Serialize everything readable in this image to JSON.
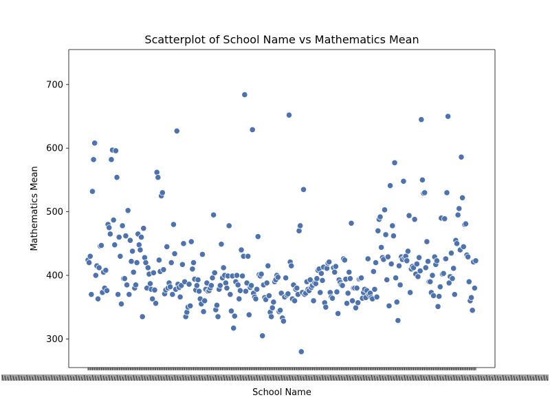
{
  "chart_data": {
    "type": "scatter",
    "title": "Scatterplot of School Name vs Mathematics Mean",
    "xlabel": "School Name",
    "ylabel": "Mathematics Mean",
    "ylim": [
      255,
      755
    ],
    "yticks": [
      300,
      400,
      500,
      600,
      700
    ],
    "grid": false,
    "point_color": "#4c72b0",
    "point_edge_color": "#ffffff",
    "x_tick_labels_note": "",
    "series": [
      {
        "values": [
          424,
          420,
          430,
          370,
          532,
          582,
          608,
          400,
          415,
          363,
          412,
          446,
          447,
          373,
          405,
          380,
          408,
          376,
          480,
          475,
          465,
          582,
          597,
          487,
          448,
          596,
          554,
          370,
          460,
          430,
          355,
          478,
          395,
          395,
          462,
          385,
          502,
          370,
          455,
          422,
          438,
          405,
          380,
          385,
          420,
          465,
          448,
          440,
          460,
          335,
          474,
          428,
          420,
          380,
          412,
          402,
          387,
          378,
          363,
          404,
          377,
          356,
          562,
          554,
          424,
          406,
          525,
          530,
          409,
          371,
          377,
          445,
          380,
          388,
          382,
          420,
          370,
          480,
          434,
          378,
          627,
          386,
          381,
          366,
          384,
          417,
          450,
          390,
          335,
          342,
          350,
          386,
          352,
          453,
          410,
          420,
          394,
          377,
          384,
          393,
          375,
          363,
          355,
          433,
          343,
          360,
          378,
          388,
          375,
          376,
          380,
          384,
          396,
          495,
          404,
          346,
          353,
          335,
          378,
          384,
          449,
          396,
          412,
          400,
          388,
          380,
          399,
          478,
          370,
          344,
          399,
          317,
          336,
          390,
          400,
          385,
          363,
          376,
          440,
          399,
          430,
          684,
          375,
          388,
          430,
          338,
          381,
          384,
          629,
          372,
          366,
          363,
          378,
          461,
          401,
          399,
          402,
          305,
          385,
          365,
          362,
          388,
          415,
          368,
          342,
          335,
          349,
          358,
          390,
          393,
          400,
          397,
          343,
          345,
          372,
          333,
          328,
          366,
          396,
          369,
          371,
          652,
          421,
          415,
          363,
          385,
          360,
          378,
          380,
          370,
          470,
          478,
          280,
          373,
          535,
          370,
          372,
          390,
          378,
          376,
          393,
          381,
          384,
          360,
          388,
          387,
          395,
          408,
          410,
          373,
          403,
          392,
          413,
          357,
          350,
          411,
          419,
          421,
          373,
          366,
          364,
          412,
          405,
          414,
          374,
          340,
          393,
          389,
          385,
          384,
          426,
          424,
          394,
          356,
          372,
          405,
          395,
          482,
          360,
          380,
          380,
          349,
          380,
          357,
          394,
          395,
          396,
          364,
          373,
          378,
          365,
          376,
          426,
          370,
          372,
          365,
          363,
          406,
          378,
          420,
          366,
          470,
          488,
          492,
          444,
          428,
          425,
          503,
          464,
          393,
          429,
          352,
          541,
          418,
          478,
          462,
          577,
          396,
          358,
          329,
          415,
          385,
          429,
          425,
          548,
          428,
          430,
          423,
          438,
          494,
          373,
          410,
          414,
          412,
          488,
          402,
          418,
          398,
          428,
          407,
          645,
          550,
          529,
          530,
          412,
          453,
          422,
          390,
          390,
          373,
          400,
          368,
          429,
          417,
          423,
          351,
          367,
          382,
          490,
          402,
          403,
          489,
          426,
          530,
          650,
          388,
          398,
          435,
          395,
          411,
          370,
          455,
          450,
          495,
          505,
          440,
          586,
          522,
          445,
          480,
          481,
          432,
          429,
          390,
          360,
          365,
          345,
          421,
          380,
          423
        ]
      }
    ]
  }
}
